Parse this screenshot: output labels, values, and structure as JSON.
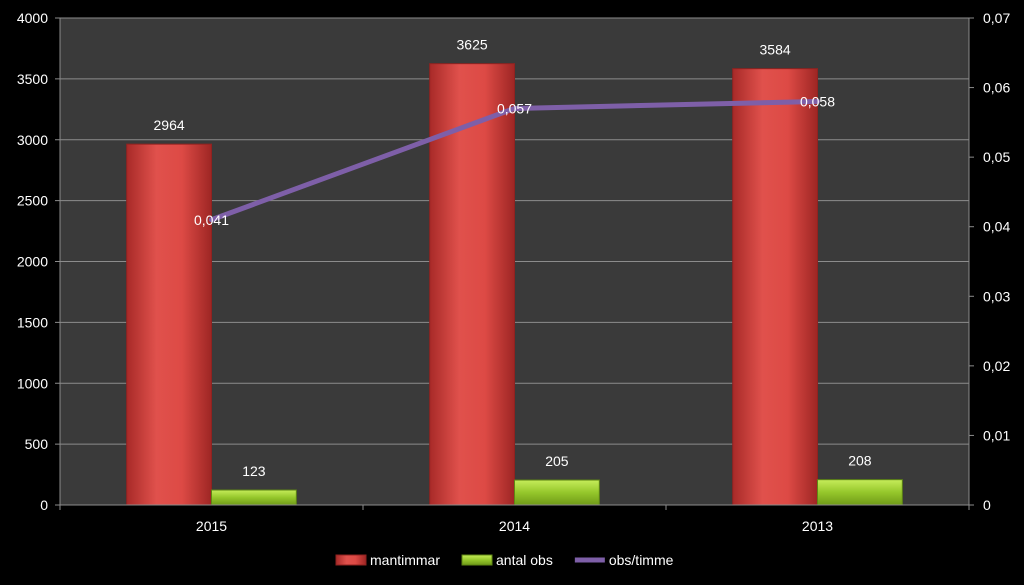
{
  "chart_data": {
    "type": "bar",
    "categories": [
      "2015",
      "2014",
      "2013"
    ],
    "series": [
      {
        "name": "mantimmar",
        "type": "bar",
        "axis": "left",
        "values": [
          2964,
          3625,
          3584
        ],
        "labels": [
          "2964",
          "3625",
          "3584"
        ],
        "color": "#d9403c"
      },
      {
        "name": "antal obs",
        "type": "bar",
        "axis": "left",
        "values": [
          123,
          205,
          208
        ],
        "labels": [
          "123",
          "205",
          "208"
        ],
        "color": "#9acd32"
      },
      {
        "name": "obs/timme",
        "type": "line",
        "axis": "right",
        "values": [
          0.041,
          0.057,
          0.058
        ],
        "labels": [
          "0,041",
          "0,057",
          "0,058"
        ],
        "color": "#7e5fa8"
      }
    ],
    "y_left": {
      "min": 0,
      "max": 4000,
      "ticks": [
        "0",
        "500",
        "1000",
        "1500",
        "2000",
        "2500",
        "3000",
        "3500",
        "4000"
      ]
    },
    "y_right": {
      "min": 0,
      "max": 0.07,
      "ticks": [
        "0",
        "0,01",
        "0,02",
        "0,03",
        "0,04",
        "0,05",
        "0,06",
        "0,07"
      ]
    },
    "grid": true,
    "legend_position": "bottom",
    "plot_background": "#3a3a3a",
    "background": "#000000"
  }
}
